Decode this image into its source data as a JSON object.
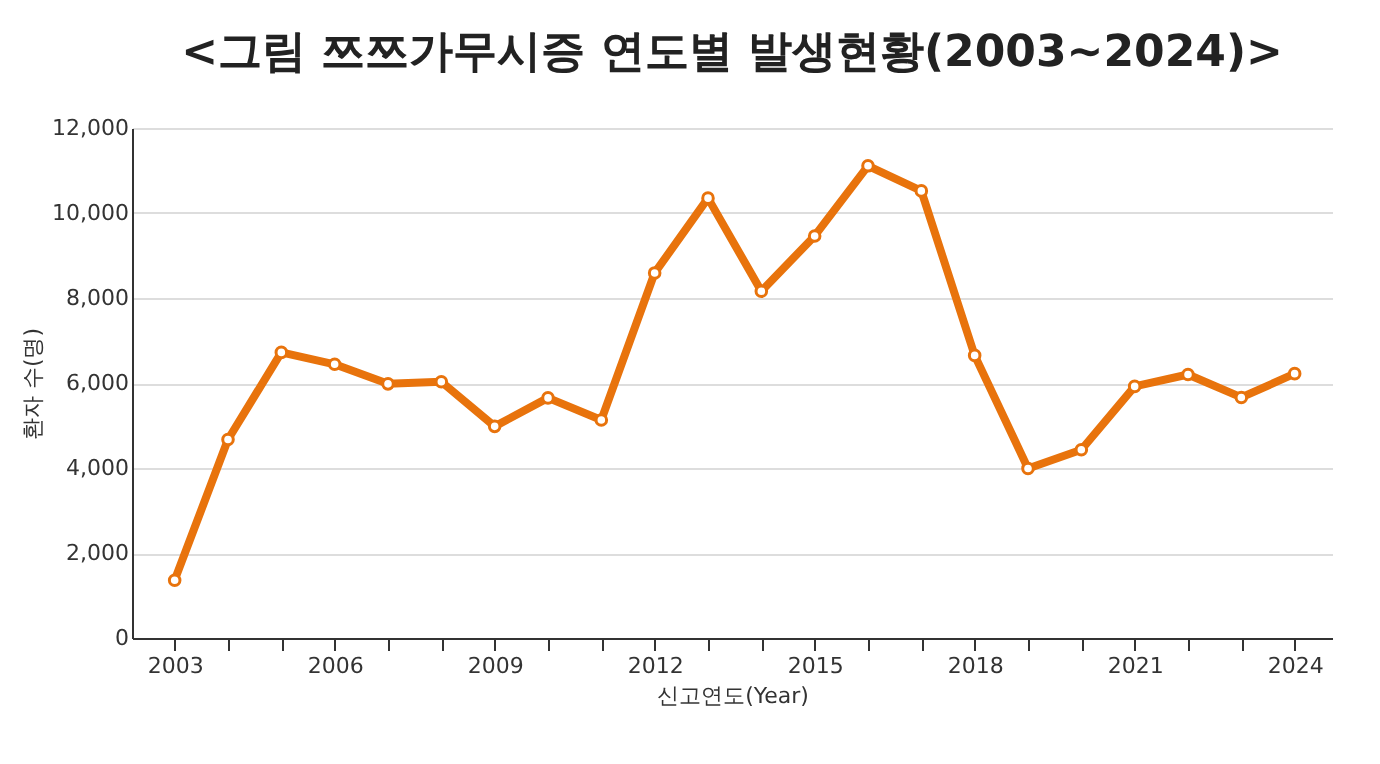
{
  "chart_data": {
    "type": "line",
    "title": "<그림 쯔쯔가무시증 연도별 발생현황(2003~2024)>",
    "xlabel": "신고연도(Year)",
    "ylabel": "환자 수(명)",
    "x": [
      2003,
      2004,
      2005,
      2006,
      2007,
      2008,
      2009,
      2010,
      2011,
      2012,
      2013,
      2014,
      2015,
      2016,
      2017,
      2018,
      2019,
      2020,
      2021,
      2022,
      2023,
      2024
    ],
    "series": [
      {
        "color": "#e8730c",
        "values": [
          1360,
          4670,
          6720,
          6440,
          5980,
          6030,
          4980,
          5650,
          5130,
          8590,
          10350,
          8160,
          9460,
          11110,
          10520,
          6650,
          3990,
          4430,
          5920,
          6200,
          5660,
          6220
        ]
      }
    ],
    "xlim": [
      2002.2,
      2024.7
    ],
    "xticks": [
      2003,
      {
        "value": 2004,
        "label": null
      },
      {
        "value": 2005,
        "label": null
      },
      2006,
      {
        "value": 2007,
        "label": null
      },
      {
        "value": 2008,
        "label": null
      },
      2009,
      {
        "value": 2010,
        "label": null
      },
      {
        "value": 2011,
        "label": null
      },
      2012,
      {
        "value": 2013,
        "label": null
      },
      {
        "value": 2014,
        "label": null
      },
      2015,
      {
        "value": 2016,
        "label": null
      },
      {
        "value": 2017,
        "label": null
      },
      2018,
      {
        "value": 2019,
        "label": null
      },
      {
        "value": 2020,
        "label": null
      },
      2021,
      {
        "value": 2022,
        "label": null
      },
      {
        "value": 2023,
        "label": null
      },
      2024
    ],
    "ylim": [
      0,
      12000
    ],
    "yticks": [
      0,
      {
        "value": 2000,
        "label": "2,000"
      },
      {
        "value": 4000,
        "label": "4,000"
      },
      {
        "value": 6000,
        "label": "6,000"
      },
      {
        "value": 8000,
        "label": "8,000"
      },
      {
        "value": 10000,
        "label": "10,000"
      },
      {
        "value": 12000,
        "label": "12,000"
      }
    ],
    "grid": "y",
    "marker": "circle",
    "line_style": "solid"
  }
}
